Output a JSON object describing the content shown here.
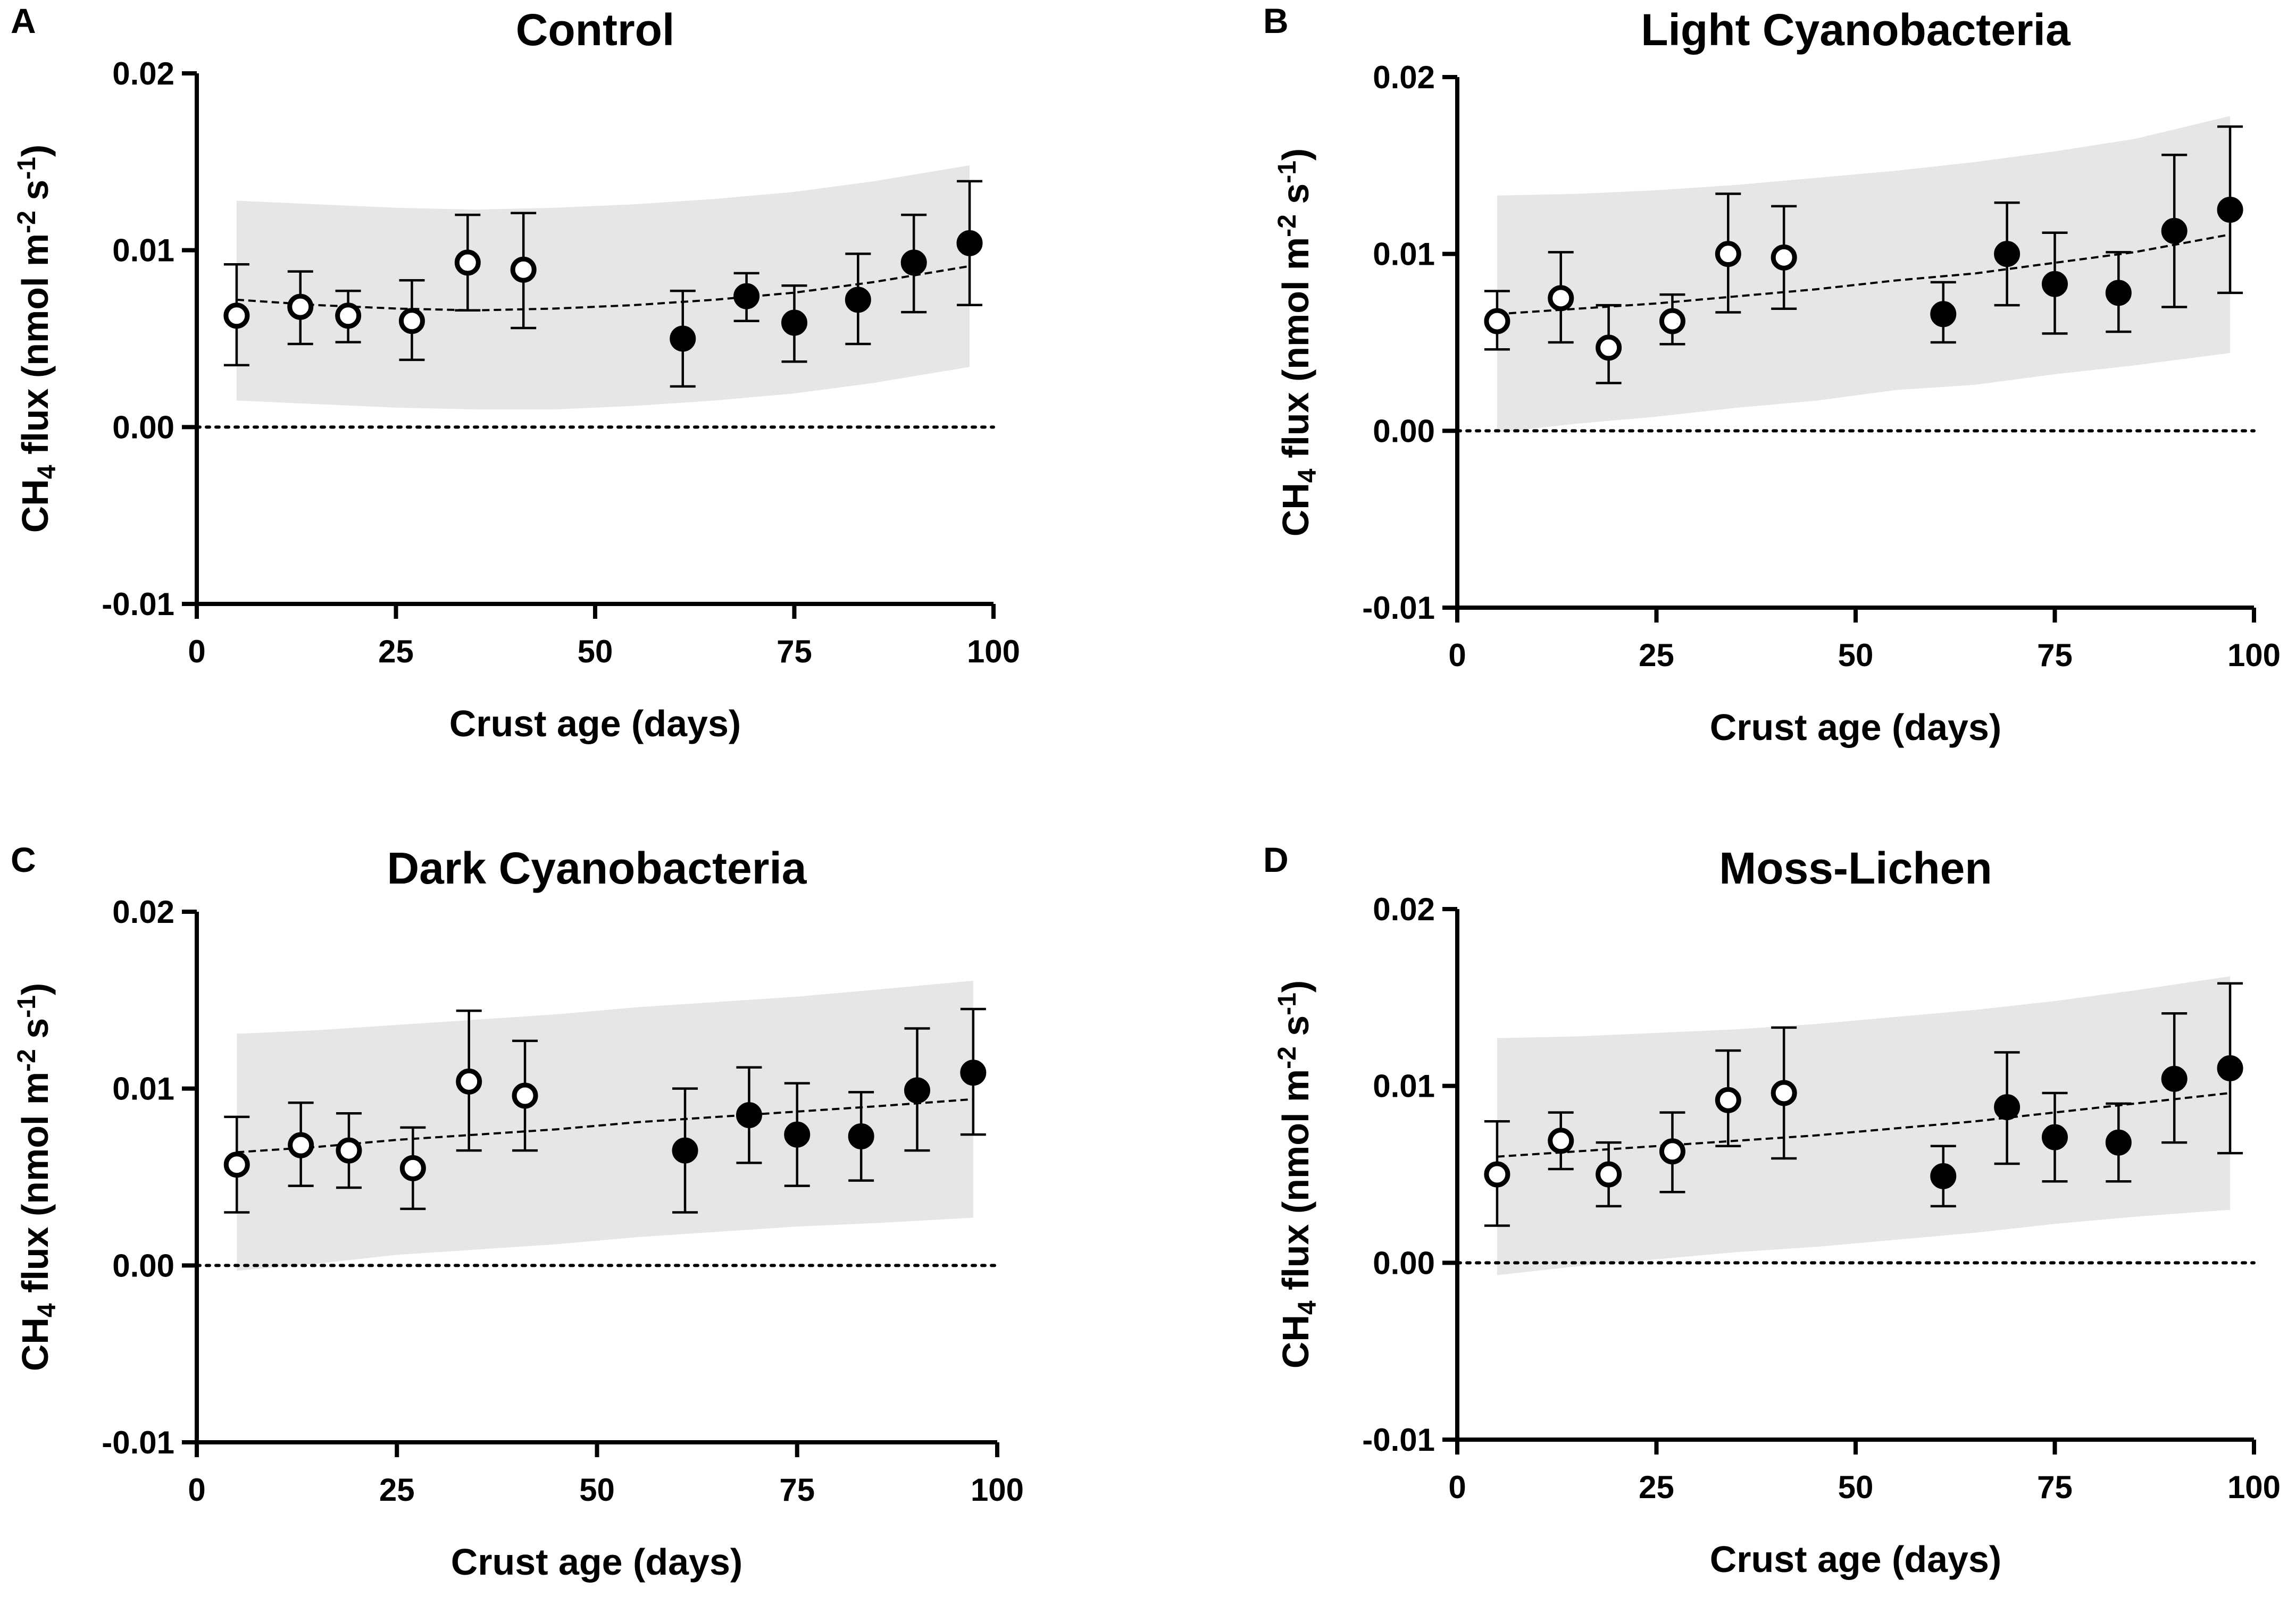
{
  "chart_data": [
    {
      "type": "scatter",
      "panel": "A",
      "title": "Control",
      "xlabel": "Crust age (days)",
      "ylabel": "CH4 flux (nmol m-2 s-1)",
      "xlim": [
        0,
        100
      ],
      "ylim": [
        -0.01,
        0.02
      ],
      "xticks": [
        0,
        25,
        50,
        75,
        100
      ],
      "xtick_labels": [
        "0",
        "25",
        "50",
        "75",
        "100"
      ],
      "yticks": [
        -0.01,
        0.0,
        0.01,
        0.02
      ],
      "ytick_labels": [
        "-0.01",
        "0.00",
        "0.01",
        "0.02"
      ],
      "reference_line": 0,
      "fit": {
        "x": [
          5,
          15,
          25,
          35,
          45,
          55,
          65,
          75,
          85,
          97
        ],
        "y": [
          0.0072,
          0.0069,
          0.0067,
          0.0066,
          0.0067,
          0.0069,
          0.0072,
          0.0076,
          0.0082,
          0.0091
        ]
      },
      "band": {
        "x": [
          5,
          15,
          25,
          35,
          45,
          55,
          65,
          75,
          85,
          97
        ],
        "upper": [
          0.0128,
          0.0126,
          0.0124,
          0.0123,
          0.0124,
          0.0126,
          0.0129,
          0.0133,
          0.0139,
          0.0148
        ],
        "lower": [
          0.0015,
          0.0013,
          0.0011,
          0.001,
          0.001,
          0.0012,
          0.0015,
          0.0019,
          0.0025,
          0.0034
        ]
      },
      "series": [
        {
          "name": "open",
          "x": [
            5,
            13,
            19,
            27,
            34,
            41
          ],
          "y": [
            0.0063,
            0.0068,
            0.0063,
            0.006,
            0.0093,
            0.0089
          ],
          "err_low": [
            0.0035,
            0.0047,
            0.0048,
            0.0038,
            0.0066,
            0.0056
          ],
          "err_high": [
            0.0092,
            0.0088,
            0.0077,
            0.0083,
            0.012,
            0.0121
          ]
        },
        {
          "name": "filled",
          "x": [
            61,
            69,
            75,
            83,
            90,
            97
          ],
          "y": [
            0.005,
            0.0074,
            0.0059,
            0.0072,
            0.0093,
            0.0104
          ],
          "err_low": [
            0.0023,
            0.006,
            0.0037,
            0.0047,
            0.0065,
            0.0069
          ],
          "err_high": [
            0.0077,
            0.0087,
            0.008,
            0.0098,
            0.012,
            0.0139
          ]
        }
      ]
    },
    {
      "type": "scatter",
      "panel": "B",
      "title": "Light Cyanobacteria",
      "xlabel": "Crust age (days)",
      "ylabel": "CH4 flux (nmol m-2 s-1)",
      "xlim": [
        0,
        100
      ],
      "ylim": [
        -0.01,
        0.02
      ],
      "xticks": [
        0,
        25,
        50,
        75,
        100
      ],
      "xtick_labels": [
        "0",
        "25",
        "50",
        "75",
        "100"
      ],
      "yticks": [
        -0.01,
        0.0,
        0.01,
        0.02
      ],
      "ytick_labels": [
        "-0.01",
        "0.00",
        "0.01",
        "0.02"
      ],
      "reference_line": 0,
      "fit": {
        "x": [
          5,
          15,
          25,
          35,
          45,
          55,
          65,
          75,
          85,
          97
        ],
        "y": [
          0.0066,
          0.0069,
          0.0072,
          0.0076,
          0.008,
          0.0085,
          0.0089,
          0.0095,
          0.0101,
          0.0111
        ]
      },
      "band": {
        "x": [
          5,
          15,
          25,
          35,
          45,
          55,
          65,
          75,
          85,
          97
        ],
        "upper": [
          0.0133,
          0.0134,
          0.0136,
          0.0139,
          0.0143,
          0.0147,
          0.0152,
          0.0158,
          0.0165,
          0.0178
        ]
      },
      "series": [
        {
          "name": "open",
          "x": [
            5,
            13,
            19,
            27,
            34,
            41
          ],
          "y": [
            0.0062,
            0.0075,
            0.0047,
            0.0062,
            0.01,
            0.0098
          ],
          "err_low": [
            0.0046,
            0.005,
            0.0027,
            0.0049,
            0.0067,
            0.0069
          ],
          "err_high": [
            0.0079,
            0.0101,
            0.0071,
            0.0077,
            0.0134,
            0.0127
          ]
        },
        {
          "name": "filled",
          "x": [
            61,
            69,
            75,
            83,
            90,
            97
          ],
          "y": [
            0.0066,
            0.01,
            0.0083,
            0.0078,
            0.0113,
            0.0125
          ],
          "err_low": [
            0.005,
            0.0071,
            0.0055,
            0.0056,
            0.007,
            0.0078
          ],
          "err_high": [
            0.0084,
            0.0129,
            0.0112,
            0.0101,
            0.0156,
            0.0172
          ]
        }
      ]
    },
    {
      "type": "scatter",
      "panel": "C",
      "title": "Dark Cyanobacteria",
      "xlabel": "Crust age (days)",
      "ylabel": "CH4 flux (nmol m-2 s-1)",
      "xlim": [
        0,
        100
      ],
      "ylim": [
        -0.01,
        0.02
      ],
      "xticks": [
        0,
        25,
        50,
        75,
        100
      ],
      "xtick_labels": [
        "0",
        "25",
        "50",
        "75",
        "100"
      ],
      "yticks": [
        -0.01,
        0.0,
        0.01,
        0.02
      ],
      "ytick_labels": [
        "-0.01",
        "0.00",
        "0.01",
        "0.02"
      ],
      "reference_line": 0,
      "fit": {
        "x": [
          5,
          15,
          25,
          35,
          45,
          55,
          65,
          75,
          85,
          97
        ],
        "y": [
          0.0064,
          0.0067,
          0.0071,
          0.0074,
          0.0077,
          0.0081,
          0.0084,
          0.0087,
          0.009,
          0.0094
        ]
      },
      "band": {
        "x": [
          5,
          15,
          25,
          35,
          45,
          55,
          65,
          75,
          85,
          97
        ],
        "upper": [
          0.0131,
          0.0133,
          0.0136,
          0.0139,
          0.0142,
          0.0146,
          0.0149,
          0.0152,
          0.0156,
          0.0161
        ]
      },
      "series": [
        {
          "name": "open",
          "x": [
            5,
            13,
            19,
            27,
            34,
            41
          ],
          "y": [
            0.0057,
            0.0068,
            0.0065,
            0.0055,
            0.0104,
            0.0096
          ],
          "err_low": [
            0.003,
            0.0045,
            0.0044,
            0.0032,
            0.0065,
            0.0065
          ],
          "err_high": [
            0.0084,
            0.0092,
            0.0086,
            0.0078,
            0.0144,
            0.0127
          ]
        },
        {
          "name": "filled",
          "x": [
            61,
            69,
            75,
            83,
            90,
            97
          ],
          "y": [
            0.0065,
            0.0085,
            0.0074,
            0.0073,
            0.0099,
            0.0109
          ],
          "err_low": [
            0.003,
            0.0058,
            0.0045,
            0.0048,
            0.0065,
            0.0074
          ],
          "err_high": [
            0.01,
            0.0112,
            0.0103,
            0.0098,
            0.0134,
            0.0145
          ]
        }
      ]
    },
    {
      "type": "scatter",
      "panel": "D",
      "title": "Moss-Lichen",
      "xlabel": "Crust age (days)",
      "ylabel": "CH4 flux (nmol m-2 s-1)",
      "xlim": [
        0,
        100
      ],
      "ylim": [
        -0.01,
        0.02
      ],
      "xticks": [
        0,
        25,
        50,
        75,
        100
      ],
      "xtick_labels": [
        "0",
        "25",
        "50",
        "75",
        "100"
      ],
      "yticks": [
        -0.01,
        0.0,
        0.01,
        0.02
      ],
      "ytick_labels": [
        "-0.01",
        "0.00",
        "0.01",
        "0.02"
      ],
      "reference_line": 0,
      "fit": {
        "x": [
          5,
          15,
          25,
          35,
          45,
          55,
          65,
          75,
          85,
          97
        ],
        "y": [
          0.006,
          0.0063,
          0.0066,
          0.0069,
          0.0072,
          0.0076,
          0.008,
          0.0085,
          0.009,
          0.0096
        ]
      },
      "band": {
        "x": [
          5,
          15,
          25,
          35,
          45,
          55,
          65,
          75,
          85,
          97
        ],
        "upper": [
          0.0127,
          0.0128,
          0.013,
          0.0132,
          0.0135,
          0.0139,
          0.0143,
          0.0148,
          0.0154,
          0.0162
        ]
      },
      "series": [
        {
          "name": "open",
          "x": [
            5,
            13,
            19,
            27,
            34,
            41
          ],
          "y": [
            0.005,
            0.0069,
            0.005,
            0.0063,
            0.0092,
            0.0096
          ],
          "err_low": [
            0.0021,
            0.0053,
            0.0032,
            0.004,
            0.0066,
            0.0059
          ],
          "err_high": [
            0.008,
            0.0085,
            0.0068,
            0.0085,
            0.012,
            0.0133
          ]
        },
        {
          "name": "filled",
          "x": [
            61,
            69,
            75,
            83,
            90,
            97
          ],
          "y": [
            0.0049,
            0.0088,
            0.0071,
            0.0068,
            0.0104,
            0.011
          ],
          "err_low": [
            0.0032,
            0.0056,
            0.0046,
            0.0046,
            0.0068,
            0.0062
          ],
          "err_high": [
            0.0066,
            0.0119,
            0.0096,
            0.009,
            0.0141,
            0.0158
          ]
        }
      ]
    }
  ]
}
